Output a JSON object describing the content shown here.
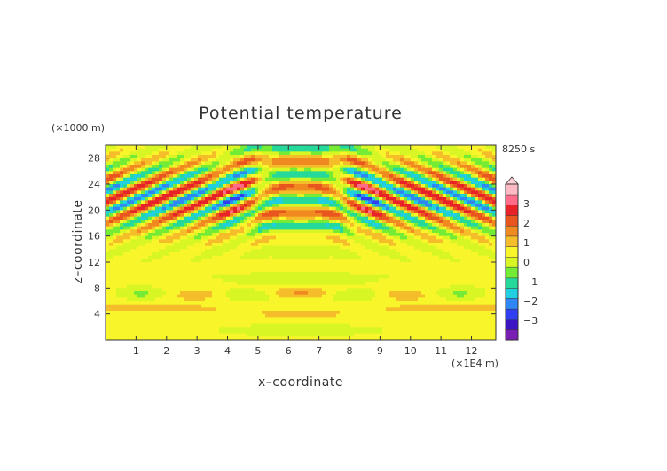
{
  "chart_data": {
    "type": "heatmap",
    "title": "Potential temperature",
    "xlabel": "x–coordinate",
    "ylabel": "z–coordinate",
    "x_unit": "(×1E4 m)",
    "y_unit": "(×1000 m)",
    "time_label": "8250 s",
    "xlim": [
      0,
      12.8
    ],
    "ylim": [
      0,
      30
    ],
    "x_ticks": [
      1,
      2,
      3,
      4,
      5,
      6,
      7,
      8,
      9,
      10,
      11,
      12
    ],
    "y_ticks": [
      4,
      8,
      12,
      16,
      20,
      24,
      28
    ],
    "colorbar": {
      "ticks": [
        3,
        2,
        1,
        0,
        -1,
        -2,
        -3
      ],
      "tick_labels": [
        "3",
        "2",
        "1",
        "0",
        "−1",
        "−2",
        "−3"
      ],
      "range": [
        -4,
        4
      ],
      "colors": [
        "#7a1fb3",
        "#3b14c4",
        "#2f3ff2",
        "#2f86f5",
        "#20cfe0",
        "#24d99a",
        "#74ec35",
        "#d8f524",
        "#f8f52a",
        "#f5bd2a",
        "#f08a20",
        "#e8551e",
        "#e82229",
        "#ff6b88",
        "#ffb9c4"
      ]
    }
  }
}
